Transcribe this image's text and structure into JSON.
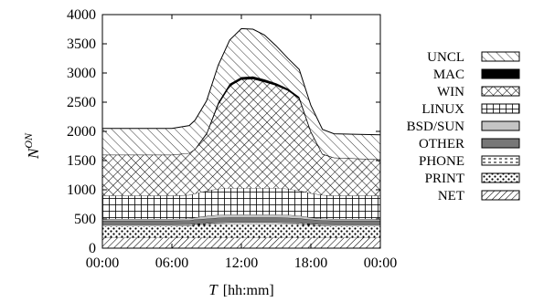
{
  "chart_data": {
    "type": "area",
    "stacked": true,
    "xlabel": {
      "symbol": "T",
      "unit": "[hh:mm]"
    },
    "ylabel": {
      "base": "N",
      "superscript": "ON"
    },
    "x_ticks": [
      "00:00",
      "06:00",
      "12:00",
      "18:00",
      "00:00"
    ],
    "xlim_hours": [
      0,
      24
    ],
    "ylim": [
      0,
      4000
    ],
    "y_ticks": [
      "0",
      "500",
      "1000",
      "1500",
      "2000",
      "2500",
      "3000",
      "3500",
      "4000"
    ],
    "y_tick_values": [
      0,
      500,
      1000,
      1500,
      2000,
      2500,
      3000,
      3500,
      4000
    ],
    "grid": false,
    "legend_position": "right",
    "x_hours": [
      0,
      6,
      7.5,
      8,
      9,
      10,
      11,
      12,
      13,
      14,
      15,
      16,
      17,
      18,
      19,
      20,
      24
    ],
    "series": [
      {
        "name": "NET",
        "pattern": "diag-fine",
        "values": [
          180,
          180,
          180,
          180,
          180,
          180,
          180,
          180,
          180,
          180,
          180,
          180,
          180,
          180,
          180,
          180,
          180
        ]
      },
      {
        "name": "PRINT",
        "pattern": "dots",
        "values": [
          200,
          200,
          205,
          215,
          225,
          235,
          240,
          240,
          240,
          240,
          240,
          235,
          230,
          215,
          205,
          200,
          200
        ]
      },
      {
        "name": "PHONE",
        "pattern": "dashed",
        "values": [
          20,
          20,
          20,
          20,
          20,
          20,
          20,
          20,
          20,
          20,
          20,
          20,
          20,
          20,
          20,
          20,
          20
        ]
      },
      {
        "name": "OTHER",
        "pattern": "solid-dark",
        "values": [
          70,
          70,
          70,
          75,
          80,
          85,
          85,
          85,
          85,
          85,
          85,
          85,
          80,
          75,
          70,
          70,
          70
        ]
      },
      {
        "name": "BSD/SUN",
        "pattern": "solid-light",
        "values": [
          30,
          30,
          30,
          35,
          45,
          50,
          50,
          50,
          50,
          50,
          50,
          50,
          45,
          35,
          30,
          30,
          30
        ]
      },
      {
        "name": "LINUX",
        "pattern": "grid",
        "values": [
          400,
          400,
          405,
          410,
          430,
          445,
          455,
          455,
          455,
          455,
          455,
          445,
          430,
          415,
          405,
          400,
          400
        ]
      },
      {
        "name": "WIN",
        "pattern": "crosshatch",
        "values": [
          700,
          700,
          720,
          760,
          980,
          1450,
          1750,
          1860,
          1870,
          1820,
          1760,
          1690,
          1580,
          1050,
          700,
          650,
          620
        ]
      },
      {
        "name": "MAC",
        "pattern": "solid-black",
        "values": [
          0,
          0,
          0,
          5,
          15,
          30,
          35,
          40,
          40,
          40,
          35,
          30,
          25,
          15,
          5,
          0,
          0
        ]
      },
      {
        "name": "UNCL",
        "pattern": "diag-wide",
        "values": [
          450,
          450,
          470,
          490,
          550,
          640,
          750,
          830,
          810,
          760,
          640,
          520,
          470,
          440,
          420,
          410,
          420
        ]
      }
    ]
  }
}
